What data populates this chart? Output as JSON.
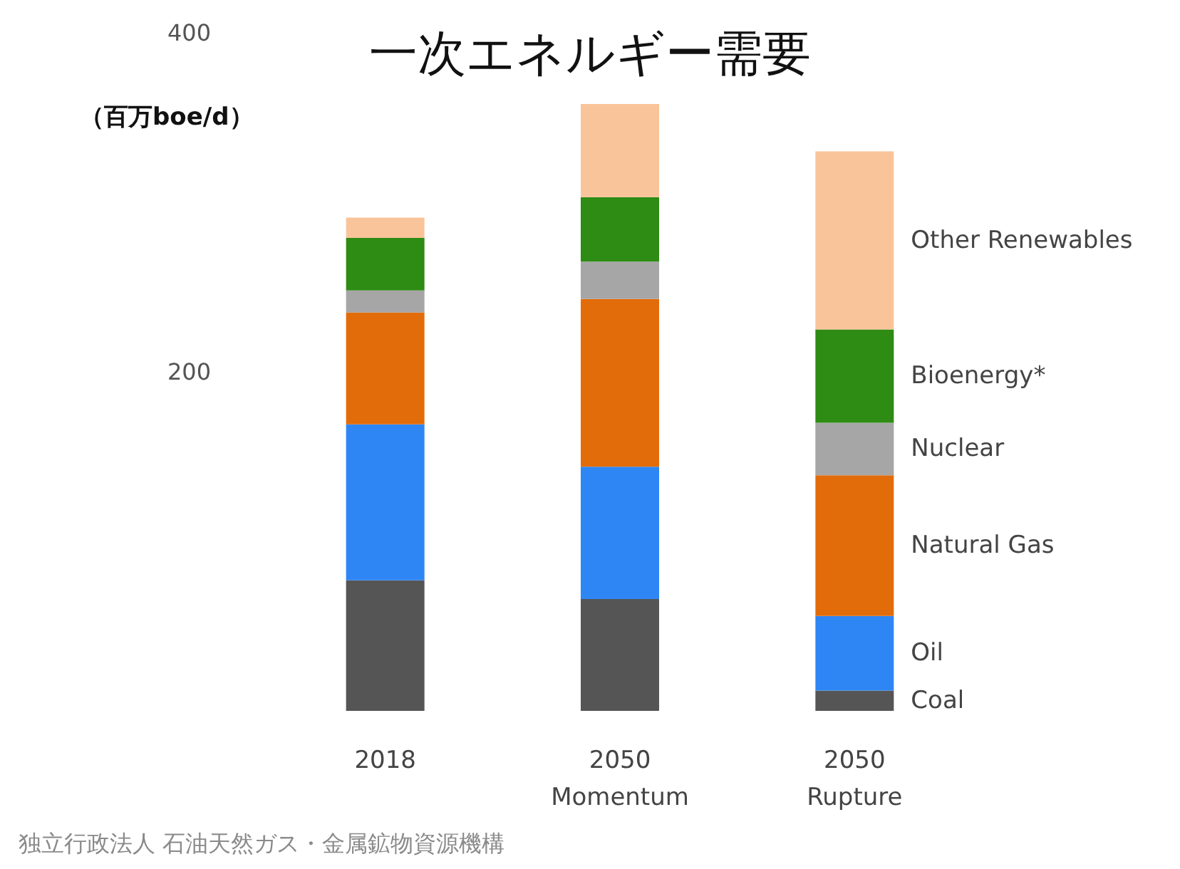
{
  "chart_data": {
    "type": "bar",
    "title": "一次エネルギー需要",
    "ylabel": "（百万boe/d）",
    "categories": [
      "2018",
      "2050 Momentum",
      "2050 Rupture"
    ],
    "stacked": true,
    "ylim": [
      0,
      400
    ],
    "yticks": [
      200,
      400
    ],
    "grid": false,
    "legend": false,
    "series": [
      {
        "name": "Coal",
        "color": "#555555",
        "values": [
          77,
          66,
          12
        ]
      },
      {
        "name": "Oil",
        "color": "#2e86f5",
        "values": [
          92,
          78,
          44
        ]
      },
      {
        "name": "Natural Gas",
        "color": "#e36c0a",
        "values": [
          66,
          99,
          83
        ]
      },
      {
        "name": "Nuclear",
        "color": "#a6a6a6",
        "values": [
          13,
          22,
          31
        ]
      },
      {
        "name": "Bioenergy*",
        "color": "#2e8b14",
        "values": [
          31,
          38,
          55
        ]
      },
      {
        "name": "Other Renewables",
        "color": "#f9c49a",
        "values": [
          12,
          55,
          105
        ]
      }
    ],
    "annotations": [
      "独立行政法人 石油天然ガス・金属鉱物資源機構"
    ]
  }
}
